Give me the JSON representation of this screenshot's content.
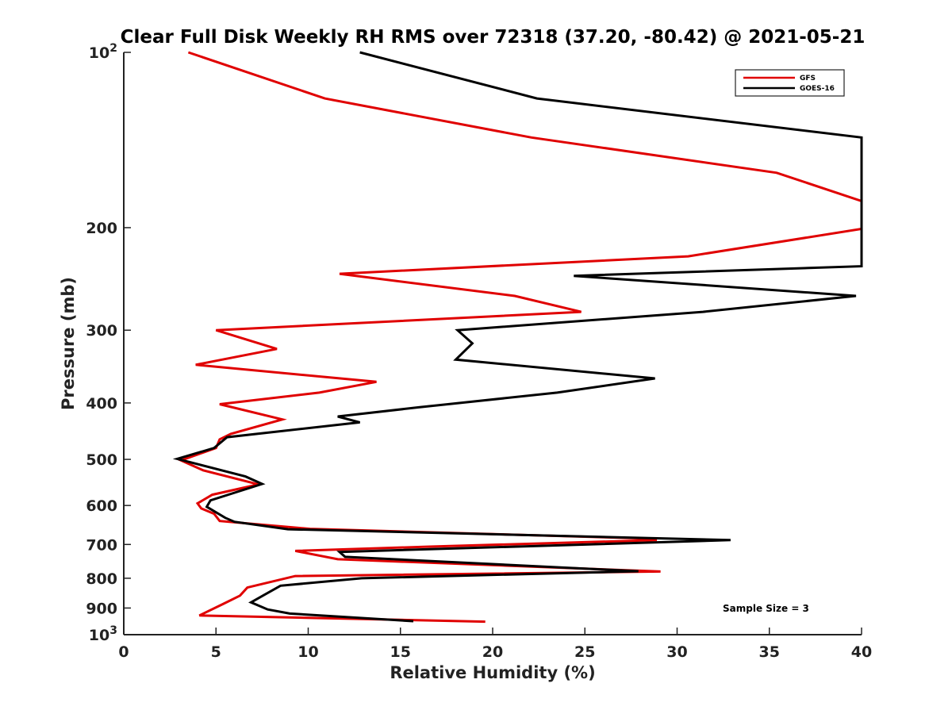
{
  "chart_data": {
    "type": "line",
    "title": "Clear Full Disk Weekly RH RMS over 72318 (37.20, -80.42) @ 2021-05-21",
    "xlabel": "Relative Humidity (%)",
    "ylabel": "Pressure (mb)",
    "xlim": [
      0,
      40
    ],
    "ylim": [
      100,
      1000
    ],
    "yscale": "log",
    "y_reversed": true,
    "xticks": [
      0,
      5,
      10,
      15,
      20,
      25,
      30,
      35,
      40
    ],
    "xtick_labels": [
      "0",
      "5",
      "10",
      "15",
      "20",
      "25",
      "30",
      "35",
      "40"
    ],
    "yticks": [
      100,
      200,
      300,
      400,
      500,
      600,
      700,
      800,
      900,
      1000
    ],
    "ytick_labels": [
      {
        "base": "10",
        "exp": "2"
      },
      {
        "base": "200",
        "exp": ""
      },
      {
        "base": "300",
        "exp": ""
      },
      {
        "base": "400",
        "exp": ""
      },
      {
        "base": "500",
        "exp": ""
      },
      {
        "base": "600",
        "exp": ""
      },
      {
        "base": "700",
        "exp": ""
      },
      {
        "base": "800",
        "exp": ""
      },
      {
        "base": "900",
        "exp": ""
      },
      {
        "base": "10",
        "exp": "3"
      }
    ],
    "legend_position": "top-right",
    "series": [
      {
        "name": "GFS",
        "color": "#e00000",
        "points": [
          [
            3.5,
            100
          ],
          [
            10.9,
            120
          ],
          [
            22.1,
            140
          ],
          [
            35.4,
            161
          ],
          [
            40,
            180
          ],
          [
            40,
            201
          ],
          [
            30.6,
            224
          ],
          [
            11.7,
            240
          ],
          [
            21.2,
            262
          ],
          [
            24.8,
            279
          ],
          [
            5.0,
            300
          ],
          [
            8.3,
            323
          ],
          [
            3.9,
            344
          ],
          [
            13.7,
            368
          ],
          [
            10.6,
            384
          ],
          [
            5.2,
            402
          ],
          [
            8.6,
            427
          ],
          [
            5.8,
            452
          ],
          [
            5.2,
            462
          ],
          [
            5.0,
            478
          ],
          [
            3.1,
            502
          ],
          [
            4.3,
            522
          ],
          [
            7.3,
            552
          ],
          [
            4.8,
            575
          ],
          [
            4.0,
            595
          ],
          [
            4.2,
            607
          ],
          [
            4.9,
            620
          ],
          [
            5.2,
            638
          ],
          [
            10.1,
            658
          ],
          [
            28.5,
            684
          ],
          [
            28.9,
            688
          ],
          [
            16.6,
            706
          ],
          [
            9.3,
            718
          ],
          [
            11.6,
            742
          ],
          [
            29.1,
            779
          ],
          [
            9.3,
            793
          ],
          [
            6.7,
            830
          ],
          [
            6.3,
            857
          ],
          [
            5.4,
            885
          ],
          [
            4.1,
            927
          ],
          [
            19.6,
            950
          ]
        ]
      },
      {
        "name": "GOES-16",
        "color": "#000000",
        "points": [
          [
            12.8,
            100
          ],
          [
            22.4,
            120
          ],
          [
            40,
            140
          ],
          [
            40,
            233
          ],
          [
            24.4,
            242
          ],
          [
            39.7,
            262
          ],
          [
            31.4,
            279
          ],
          [
            18.1,
            300
          ],
          [
            18.9,
            316
          ],
          [
            18.0,
            337
          ],
          [
            28.8,
            363
          ],
          [
            23.5,
            384
          ],
          [
            16.0,
            407
          ],
          [
            11.6,
            422
          ],
          [
            12.8,
            432
          ],
          [
            5.6,
            458
          ],
          [
            4.9,
            478
          ],
          [
            2.9,
            499
          ],
          [
            6.6,
            535
          ],
          [
            7.5,
            551
          ],
          [
            4.7,
            588
          ],
          [
            4.5,
            603
          ],
          [
            5.5,
            630
          ],
          [
            6.0,
            640
          ],
          [
            8.9,
            659
          ],
          [
            32.9,
            688
          ],
          [
            11.7,
            721
          ],
          [
            12.0,
            735
          ],
          [
            27.9,
            778
          ],
          [
            12.9,
            800
          ],
          [
            8.5,
            824
          ],
          [
            7.6,
            855
          ],
          [
            6.9,
            880
          ],
          [
            7.8,
            905
          ],
          [
            9.0,
            920
          ],
          [
            15.7,
            948
          ]
        ]
      }
    ],
    "annotations": [
      "Sample Size = 3"
    ]
  }
}
